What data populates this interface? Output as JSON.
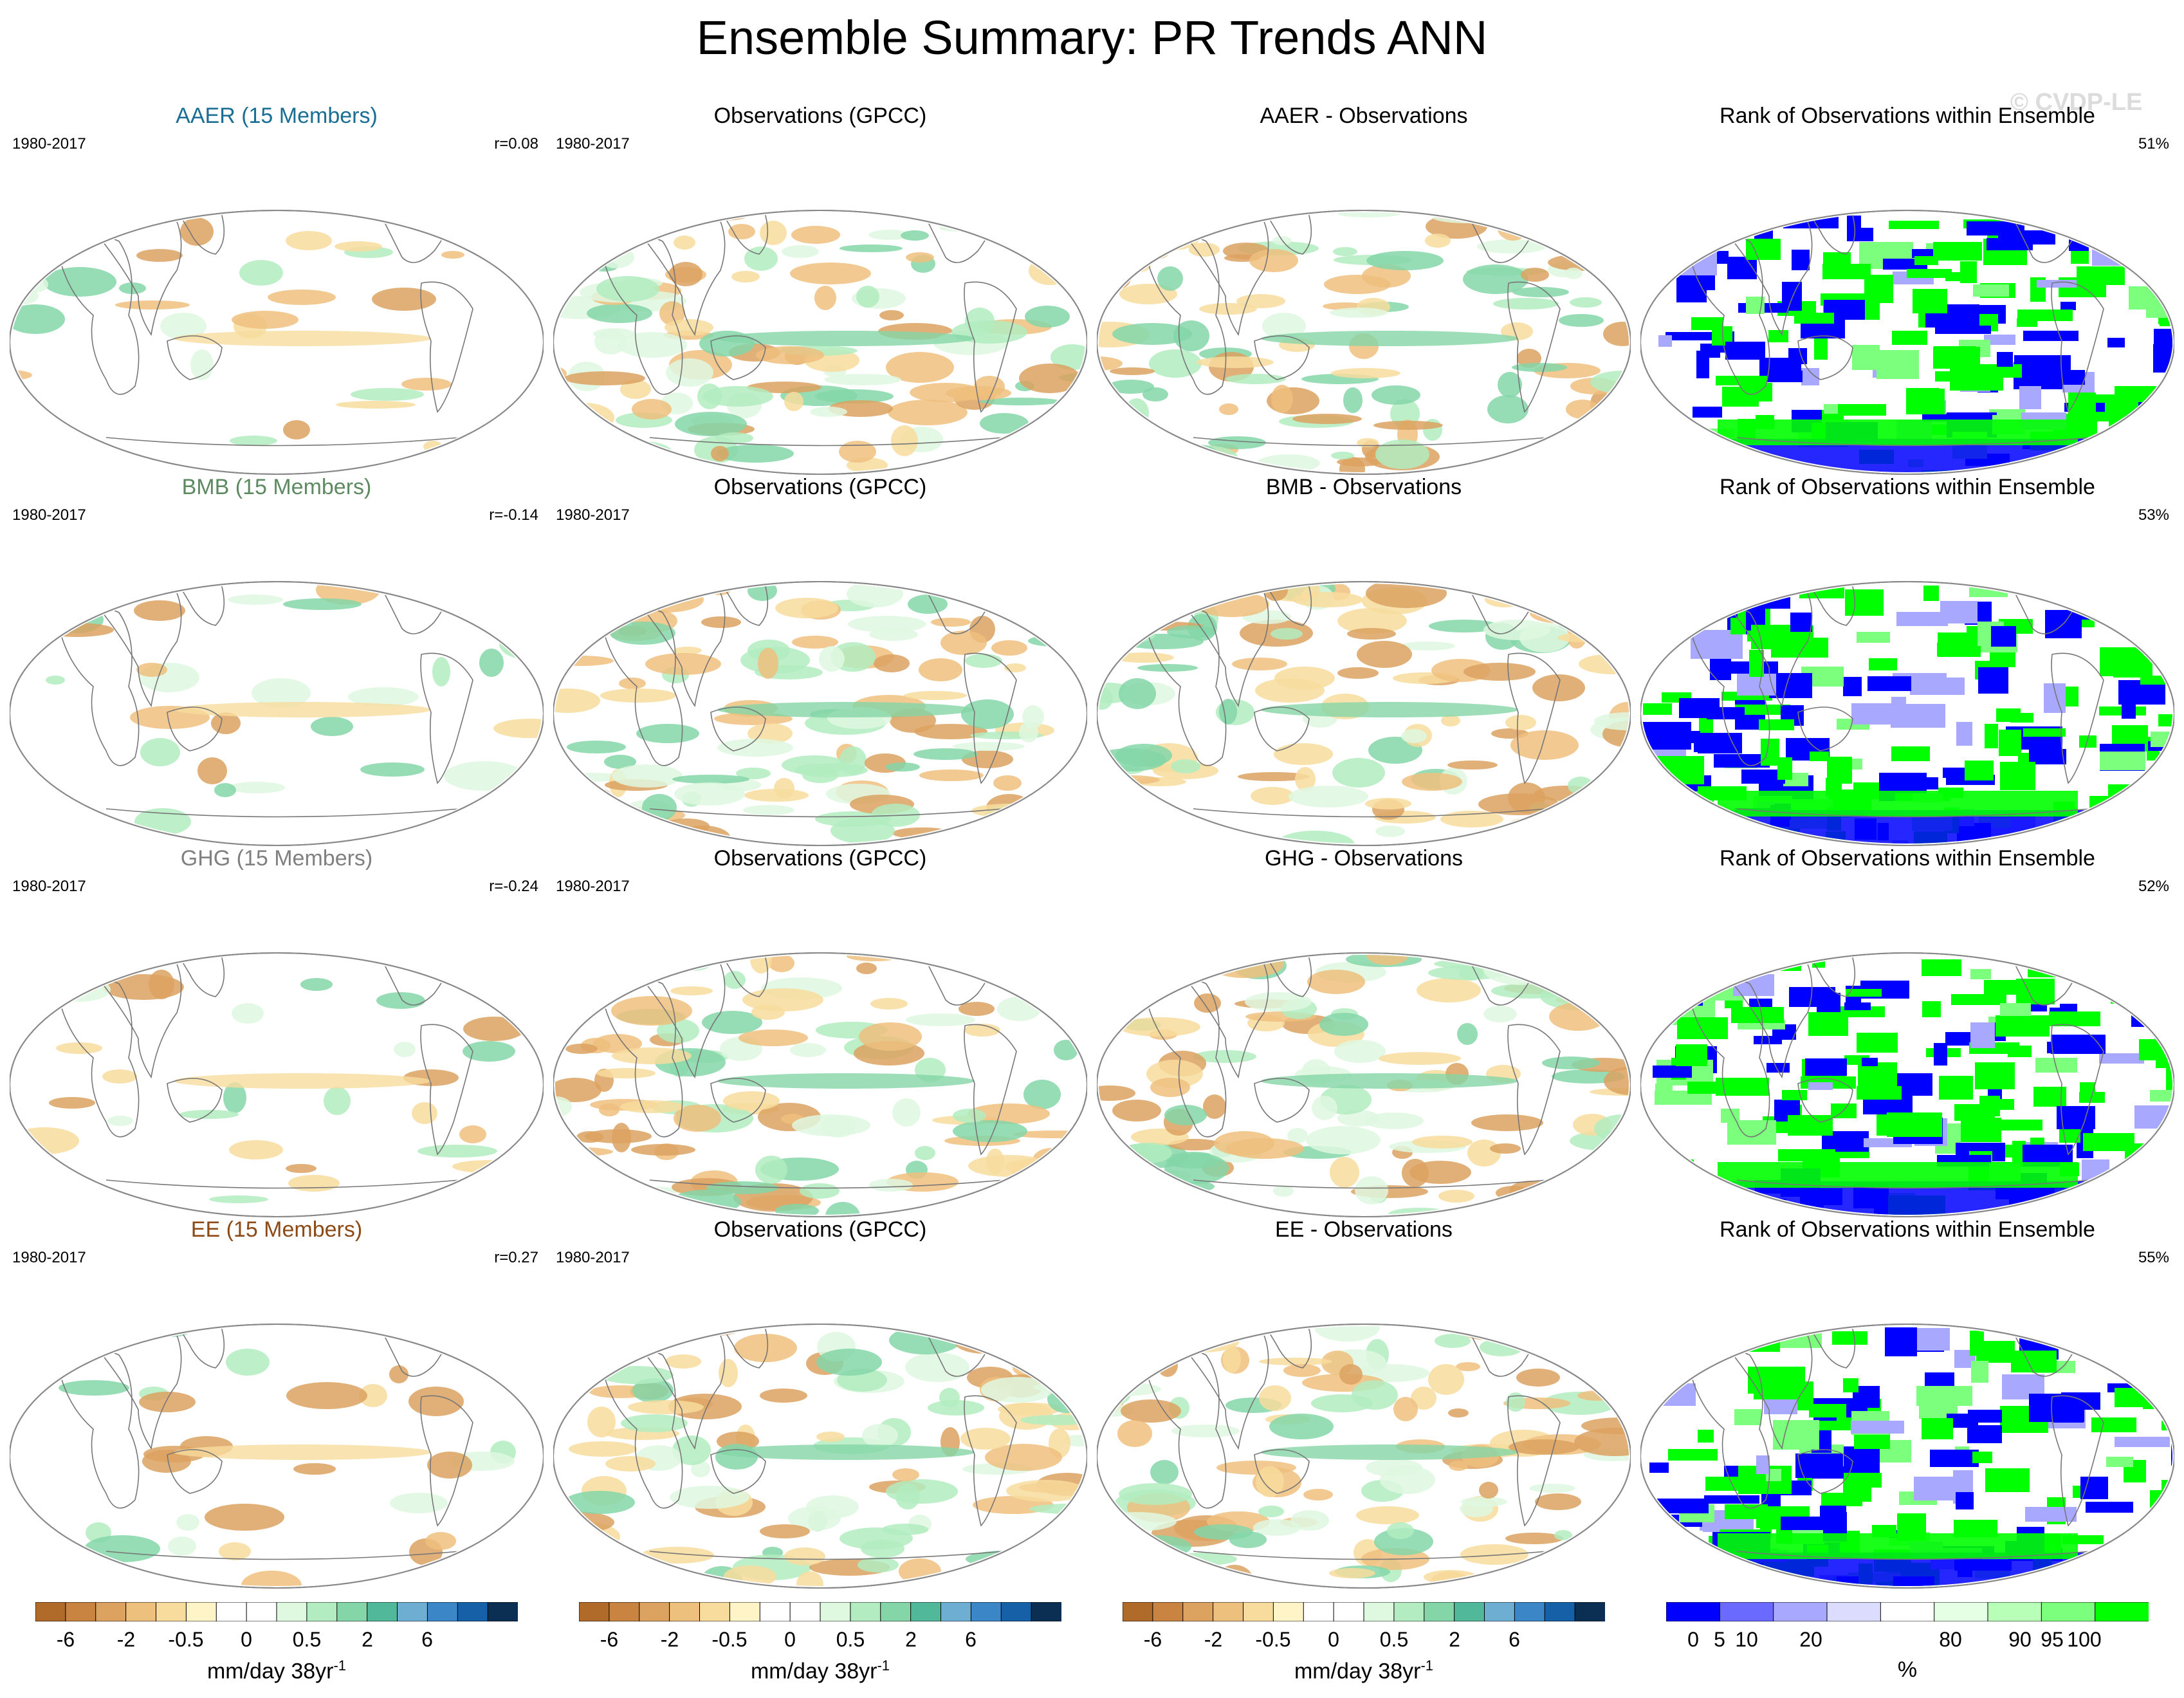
{
  "figure": {
    "title": "Ensemble Summary: PR Trends ANN",
    "watermark": "© CVDP-LE"
  },
  "rows": [
    {
      "experiment": {
        "title": "AAER (15 Members)",
        "title_color": "#1a6e94",
        "period": "1980-2017",
        "r_label": "r=0.08"
      },
      "observations": {
        "title": "Observations (GPCC)",
        "period": "1980-2017"
      },
      "difference": {
        "title": "AAER - Observations"
      },
      "rank": {
        "title": "Rank of Observations within Ensemble",
        "percent": "51%"
      }
    },
    {
      "experiment": {
        "title": "BMB (15 Members)",
        "title_color": "#5e8a62",
        "period": "1980-2017",
        "r_label": "r=-0.14"
      },
      "observations": {
        "title": "Observations (GPCC)",
        "period": "1980-2017"
      },
      "difference": {
        "title": "BMB - Observations"
      },
      "rank": {
        "title": "Rank of Observations within Ensemble",
        "percent": "53%"
      }
    },
    {
      "experiment": {
        "title": "GHG (15 Members)",
        "title_color": "#808080",
        "period": "1980-2017",
        "r_label": "r=-0.24"
      },
      "observations": {
        "title": "Observations (GPCC)",
        "period": "1980-2017"
      },
      "difference": {
        "title": "GHG - Observations"
      },
      "rank": {
        "title": "Rank of Observations within Ensemble",
        "percent": "52%"
      }
    },
    {
      "experiment": {
        "title": "EE (15 Members)",
        "title_color": "#8b4a16",
        "period": "1980-2017",
        "r_label": "r=0.27"
      },
      "observations": {
        "title": "Observations (GPCC)",
        "period": "1980-2017"
      },
      "difference": {
        "title": "EE - Observations"
      },
      "rank": {
        "title": "Rank of Observations within Ensemble",
        "percent": "55%"
      }
    }
  ],
  "colorbars": {
    "trend": {
      "units_label": "mm/day 38yr",
      "units_exponent": "-1",
      "colors": [
        "#b06a2a",
        "#c88440",
        "#dca260",
        "#eec07e",
        "#f8dc9e",
        "#fff3c8",
        "#ffffff",
        "#ffffff",
        "#dff8e0",
        "#b2ecc0",
        "#84d6a8",
        "#52b89a",
        "#6eaed2",
        "#3a86c6",
        "#1560a6",
        "#0b2f52"
      ],
      "tick_labels": [
        "-6",
        "-2",
        "-0.5",
        "0",
        "0.5",
        "2",
        "6"
      ],
      "tick_positions": [
        1,
        3,
        5,
        7,
        9,
        11,
        13
      ]
    },
    "rank": {
      "units_label": "%",
      "colors": [
        "#0000ff",
        "#6a6aff",
        "#a8a8ff",
        "#dcdcff",
        "#ffffff",
        "#e4ffe4",
        "#b8ffb8",
        "#7cff7c",
        "#00ff00"
      ],
      "tick_labels": [
        "0",
        "5",
        "10",
        "20",
        "80",
        "90",
        "95",
        "100"
      ],
      "tick_positions": [
        0.5,
        1,
        1.5,
        2.7,
        5.3,
        6.6,
        7.2,
        7.8
      ]
    }
  },
  "chart_data": {
    "type": "heatmap",
    "title": "Ensemble Summary: PR Trends ANN",
    "variable": "PR",
    "season": "ANN",
    "period": "1980-2017",
    "ensemble_size": 15,
    "experiments": [
      "AAER",
      "BMB",
      "GHG",
      "EE"
    ],
    "observations": "GPCC",
    "pattern_correlations": {
      "AAER": 0.08,
      "BMB": -0.14,
      "GHG": -0.24,
      "EE": 0.27
    },
    "rank_percent_summary": {
      "AAER": 51,
      "BMB": 53,
      "GHG": 52,
      "EE": 55
    },
    "trend_contour_levels": [
      -6,
      -4,
      -2,
      -1,
      -0.5,
      -0.25,
      0,
      0.25,
      0.5,
      1,
      2,
      4,
      6
    ],
    "rank_levels": [
      0,
      5,
      10,
      20,
      80,
      90,
      95,
      100
    ]
  }
}
